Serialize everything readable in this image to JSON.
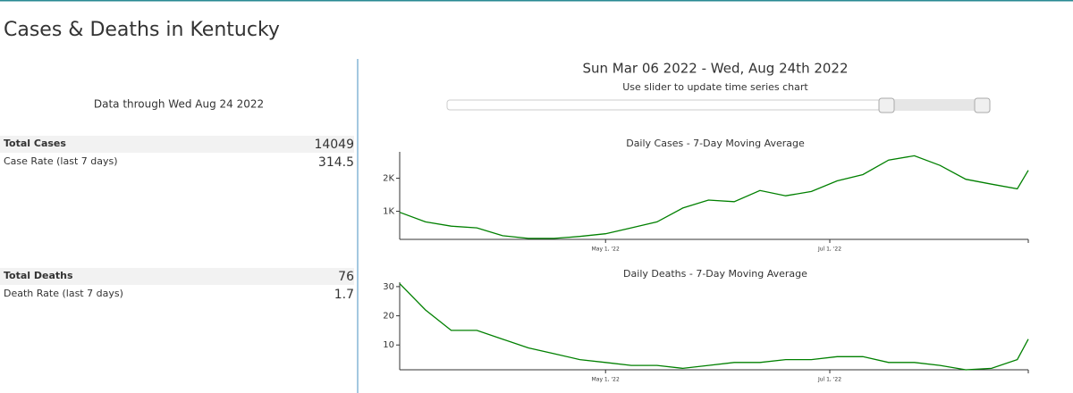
{
  "header": {
    "title": "Cases & Deaths in Kentucky",
    "data_through": "Data through Wed Aug 24 2022",
    "range": "Sun Mar 06 2022 - Wed, Aug 24th 2022",
    "slider_hint": "Use slider to update time series chart"
  },
  "stats": {
    "rows": [
      [
        "Total Cases",
        14049
      ],
      [
        "Case Rate (last 7 days)",
        314.5
      ],
      [
        "Total Deaths",
        76
      ],
      [
        "Death Rate (last 7 days)",
        1.7
      ]
    ]
  },
  "chart_data": [
    {
      "type": "line",
      "title": "Daily Cases - 7-Day Moving Average",
      "color": "#008000",
      "x": [
        "2022-03-06",
        "2022-03-13",
        "2022-03-20",
        "2022-03-27",
        "2022-04-03",
        "2022-04-10",
        "2022-04-17",
        "2022-04-24",
        "2022-05-01",
        "2022-05-08",
        "2022-05-15",
        "2022-05-22",
        "2022-05-29",
        "2022-06-05",
        "2022-06-12",
        "2022-06-19",
        "2022-06-26",
        "2022-07-03",
        "2022-07-10",
        "2022-07-17",
        "2022-07-24",
        "2022-07-31",
        "2022-08-07",
        "2022-08-14",
        "2022-08-21",
        "2022-08-24"
      ],
      "values": [
        970,
        680,
        550,
        500,
        260,
        180,
        180,
        240,
        320,
        500,
        680,
        1100,
        1340,
        1290,
        1630,
        1470,
        1600,
        1920,
        2110,
        2550,
        2680,
        2390,
        1970,
        1820,
        1680,
        2240
      ],
      "xlim": [
        "2022-03-06",
        "2022-08-24"
      ],
      "xticks": [
        {
          "value": "2022-05-01",
          "label": "May 1, '22"
        },
        {
          "value": "2022-07-01",
          "label": "Jul 1, '22"
        }
      ],
      "ylim": [
        150,
        2800
      ],
      "yticks": [
        {
          "value": 1000,
          "label": "1K"
        },
        {
          "value": 2000,
          "label": "2K"
        }
      ]
    },
    {
      "type": "line",
      "title": "Daily Deaths - 7-Day Moving Average",
      "color": "#008000",
      "x": [
        "2022-03-06",
        "2022-03-13",
        "2022-03-20",
        "2022-03-27",
        "2022-04-03",
        "2022-04-10",
        "2022-04-17",
        "2022-04-24",
        "2022-05-01",
        "2022-05-08",
        "2022-05-15",
        "2022-05-22",
        "2022-05-29",
        "2022-06-05",
        "2022-06-12",
        "2022-06-19",
        "2022-06-26",
        "2022-07-03",
        "2022-07-10",
        "2022-07-17",
        "2022-07-24",
        "2022-07-31",
        "2022-08-07",
        "2022-08-14",
        "2022-08-21",
        "2022-08-24"
      ],
      "values": [
        31,
        22,
        15,
        15,
        12,
        9,
        7,
        5,
        4,
        3,
        3,
        2,
        3,
        4,
        4,
        5,
        5,
        6,
        6,
        4,
        4,
        3,
        1.5,
        2,
        5,
        12
      ],
      "xlim": [
        "2022-03-06",
        "2022-08-24"
      ],
      "xticks": [
        {
          "value": "2022-05-01",
          "label": "May 1, '22"
        },
        {
          "value": "2022-07-01",
          "label": "Jul 1, '22"
        }
      ],
      "ylim": [
        1.5,
        31.5
      ],
      "yticks": [
        10,
        20,
        30
      ]
    }
  ]
}
